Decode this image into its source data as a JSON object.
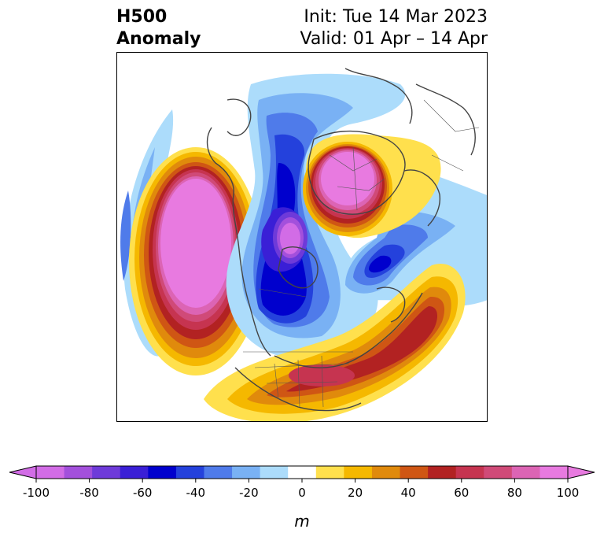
{
  "title": {
    "left_line1": "H500",
    "left_line2": "Anomaly",
    "right_line1": "Init: Tue 14 Mar 2023",
    "right_line2": "Valid: 01 Apr – 14 Apr"
  },
  "colorbar": {
    "unit": "m",
    "tick_labels": [
      "-100",
      "-80",
      "-60",
      "-40",
      "-20",
      "0",
      "20",
      "40",
      "60",
      "80",
      "100"
    ],
    "colors": [
      "#d26ce6",
      "#a350dc",
      "#6e3ad9",
      "#3a1fd6",
      "#0000cd",
      "#2441dc",
      "#4f7bea",
      "#79b1f4",
      "#acdcfb",
      "#ffffff",
      "#ffe04d",
      "#f5b800",
      "#e08a0c",
      "#cf5614",
      "#b22222",
      "#c63450",
      "#d04a78",
      "#dc64b4",
      "#e87ae0"
    ],
    "under_color": "#d26ce6",
    "over_color": "#e87ae0"
  }
}
